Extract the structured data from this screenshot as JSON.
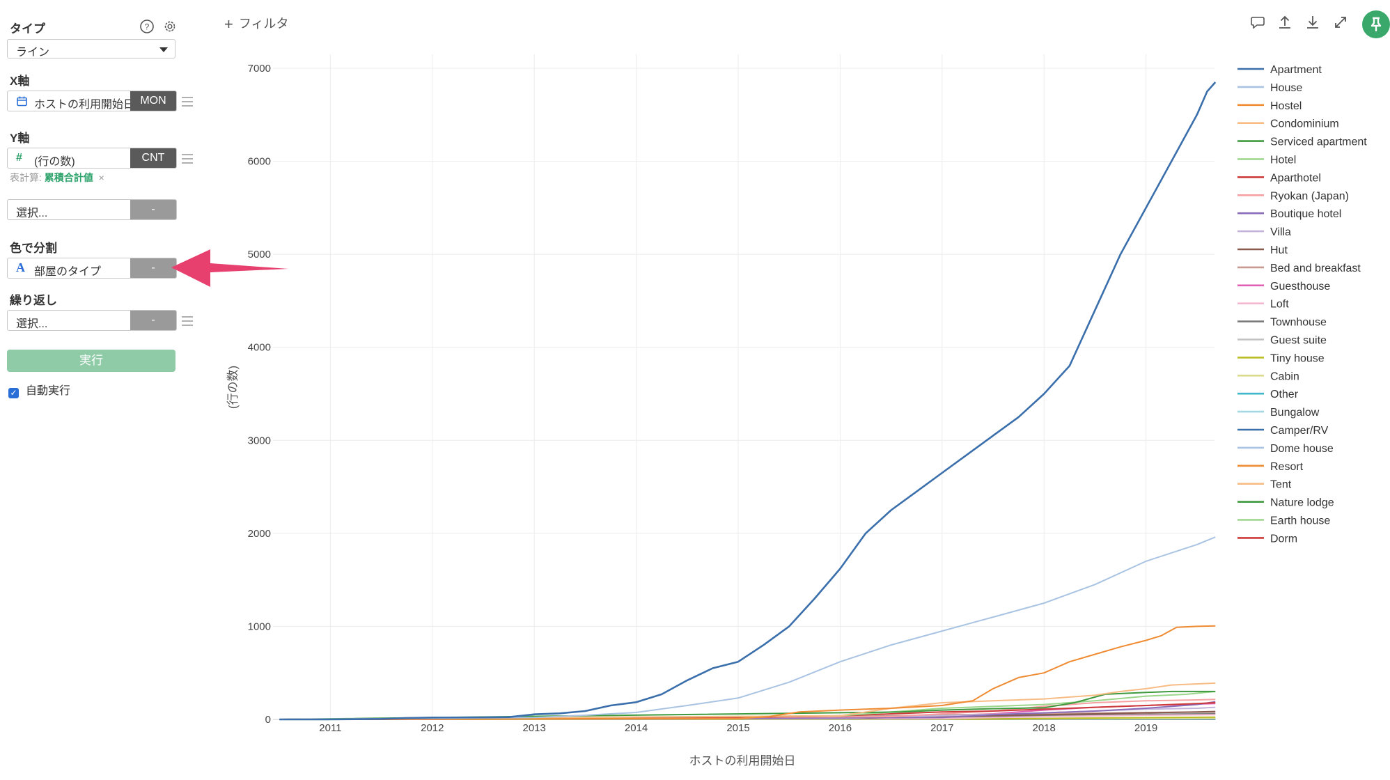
{
  "panel": {
    "type": {
      "label": "タイプ",
      "value": "ライン"
    },
    "x_axis": {
      "label": "X軸",
      "field": "ホストの利用開始日",
      "badge": "MON"
    },
    "y_axis": {
      "label": "Y軸",
      "field": "(行の数)",
      "badge": "CNT",
      "calc_prefix": "表計算:",
      "calc_value": "累積合計値",
      "calc_remove": "×"
    },
    "y_axis2": {
      "placeholder": "選択...",
      "badge": "-"
    },
    "color_split": {
      "label": "色で分割",
      "field": "部屋のタイプ",
      "badge": "-"
    },
    "repeat": {
      "label": "繰り返し",
      "placeholder": "選択...",
      "badge": "-"
    },
    "run_label": "実行",
    "auto_run_label": "自動実行",
    "auto_run_checked": true,
    "icons": {
      "help": "help-icon",
      "settings": "gear-icon",
      "calendar": "calendar-icon",
      "number": "number-icon",
      "text": "text-icon",
      "menu": "menu-icon",
      "caret": "chevron-down-icon"
    }
  },
  "toolbar": {
    "filter_label": "フィルタ",
    "icons": [
      "comment-icon",
      "upload-icon",
      "download-icon",
      "expand-icon",
      "pin-icon"
    ],
    "pin_color": "#3aa86b"
  },
  "annotation": {
    "arrow_color": "#e8406e"
  },
  "chart_data": {
    "type": "line",
    "title": "",
    "xlabel": "ホストの利用開始日",
    "ylabel": "(行の数)",
    "xlim": [
      2010.5,
      2019.75
    ],
    "ylim": [
      0,
      7000
    ],
    "x_ticks": [
      "2011",
      "2012",
      "2013",
      "2014",
      "2015",
      "2016",
      "2017",
      "2018",
      "2019"
    ],
    "y_ticks": [
      "0",
      "1000",
      "2000",
      "3000",
      "4000",
      "5000",
      "6000",
      "7000"
    ],
    "grid": true,
    "legend_position": "right",
    "series": [
      {
        "name": "Apartment",
        "color": "#3a6fac",
        "points": [
          [
            2010.5,
            0
          ],
          [
            2011,
            0
          ],
          [
            2011.5,
            5
          ],
          [
            2011.75,
            15
          ],
          [
            2012,
            20
          ],
          [
            2012.5,
            22
          ],
          [
            2012.75,
            25
          ],
          [
            2013,
            55
          ],
          [
            2013.25,
            65
          ],
          [
            2013.5,
            90
          ],
          [
            2013.75,
            150
          ],
          [
            2014,
            185
          ],
          [
            2014.25,
            270
          ],
          [
            2014.5,
            420
          ],
          [
            2014.75,
            550
          ],
          [
            2015,
            620
          ],
          [
            2015.25,
            800
          ],
          [
            2015.5,
            1000
          ],
          [
            2015.75,
            1300
          ],
          [
            2016,
            1620
          ],
          [
            2016.25,
            2000
          ],
          [
            2016.5,
            2250
          ],
          [
            2016.75,
            2450
          ],
          [
            2017,
            2650
          ],
          [
            2017.25,
            2850
          ],
          [
            2017.5,
            3050
          ],
          [
            2017.75,
            3250
          ],
          [
            2018,
            3500
          ],
          [
            2018.25,
            3800
          ],
          [
            2018.5,
            4400
          ],
          [
            2018.75,
            5000
          ],
          [
            2019,
            5500
          ],
          [
            2019.25,
            6000
          ],
          [
            2019.5,
            6500
          ],
          [
            2019.6,
            6750
          ],
          [
            2019.68,
            6850
          ]
        ]
      },
      {
        "name": "House",
        "color": "#a9c3e2",
        "points": [
          [
            2010.5,
            0
          ],
          [
            2013,
            20
          ],
          [
            2013.5,
            45
          ],
          [
            2014,
            75
          ],
          [
            2014.5,
            150
          ],
          [
            2015,
            230
          ],
          [
            2015.5,
            400
          ],
          [
            2016,
            620
          ],
          [
            2016.5,
            800
          ],
          [
            2017,
            950
          ],
          [
            2017.5,
            1100
          ],
          [
            2018,
            1250
          ],
          [
            2018.5,
            1450
          ],
          [
            2019,
            1700
          ],
          [
            2019.5,
            1880
          ],
          [
            2019.68,
            1960
          ]
        ]
      },
      {
        "name": "Hostel",
        "color": "#ef8b32",
        "points": [
          [
            2010.5,
            0
          ],
          [
            2015,
            10
          ],
          [
            2015.3,
            30
          ],
          [
            2015.6,
            80
          ],
          [
            2016,
            100
          ],
          [
            2016.5,
            120
          ],
          [
            2017,
            150
          ],
          [
            2017.3,
            200
          ],
          [
            2017.5,
            330
          ],
          [
            2017.75,
            450
          ],
          [
            2018,
            500
          ],
          [
            2018.25,
            620
          ],
          [
            2018.5,
            700
          ],
          [
            2018.75,
            780
          ],
          [
            2019,
            850
          ],
          [
            2019.15,
            900
          ],
          [
            2019.3,
            990
          ],
          [
            2019.5,
            1000
          ],
          [
            2019.68,
            1005
          ]
        ]
      },
      {
        "name": "Condominium",
        "color": "#f7bc84",
        "points": [
          [
            2010.5,
            0
          ],
          [
            2016,
            40
          ],
          [
            2016.5,
            120
          ],
          [
            2017,
            180
          ],
          [
            2017.5,
            200
          ],
          [
            2018,
            220
          ],
          [
            2018.5,
            260
          ],
          [
            2018.75,
            300
          ],
          [
            2019,
            330
          ],
          [
            2019.25,
            370
          ],
          [
            2019.68,
            390
          ]
        ]
      },
      {
        "name": "Serviced apartment",
        "color": "#3f9a3f",
        "points": [
          [
            2010.5,
            0
          ],
          [
            2016.6,
            80
          ],
          [
            2017,
            100
          ],
          [
            2017.5,
            115
          ],
          [
            2018,
            125
          ],
          [
            2018.3,
            180
          ],
          [
            2018.6,
            270
          ],
          [
            2019,
            290
          ],
          [
            2019.25,
            300
          ],
          [
            2019.68,
            300
          ]
        ]
      },
      {
        "name": "Hotel",
        "color": "#9bd68a",
        "points": [
          [
            2010.5,
            0
          ],
          [
            2016,
            40
          ],
          [
            2017,
            120
          ],
          [
            2018,
            160
          ],
          [
            2018.5,
            200
          ],
          [
            2019,
            250
          ],
          [
            2019.4,
            270
          ],
          [
            2019.68,
            300
          ]
        ]
      },
      {
        "name": "Aparthotel",
        "color": "#cd3a3a",
        "points": [
          [
            2010.5,
            0
          ],
          [
            2012,
            2
          ],
          [
            2015,
            20
          ],
          [
            2016,
            40
          ],
          [
            2016.5,
            60
          ],
          [
            2017,
            80
          ],
          [
            2017.5,
            90
          ],
          [
            2018,
            110
          ],
          [
            2018.5,
            130
          ],
          [
            2019,
            150
          ],
          [
            2019.5,
            170
          ],
          [
            2019.68,
            180
          ]
        ]
      },
      {
        "name": "Ryokan (Japan)",
        "color": "#f5a1a2",
        "points": [
          [
            2010.5,
            0
          ],
          [
            2016.5,
            30
          ],
          [
            2017.5,
            90
          ],
          [
            2018,
            140
          ],
          [
            2018.5,
            180
          ],
          [
            2019,
            200
          ],
          [
            2019.5,
            210
          ],
          [
            2019.68,
            215
          ]
        ]
      },
      {
        "name": "Boutique hotel",
        "color": "#8a6bb8",
        "points": [
          [
            2010.5,
            0
          ],
          [
            2017,
            20
          ],
          [
            2017.5,
            50
          ],
          [
            2018,
            70
          ],
          [
            2018.5,
            90
          ],
          [
            2019,
            120
          ],
          [
            2019.5,
            160
          ],
          [
            2019.68,
            190
          ]
        ]
      },
      {
        "name": "Villa",
        "color": "#c4b3da",
        "points": [
          [
            2010.5,
            0
          ],
          [
            2016,
            10
          ],
          [
            2017,
            40
          ],
          [
            2018,
            70
          ],
          [
            2018.5,
            90
          ],
          [
            2019,
            110
          ],
          [
            2019.5,
            120
          ],
          [
            2019.68,
            130
          ]
        ]
      },
      {
        "name": "Hut",
        "color": "#8a5a4e",
        "points": [
          [
            2010.5,
            0
          ],
          [
            2016,
            10
          ],
          [
            2017,
            30
          ],
          [
            2018,
            50
          ],
          [
            2018.5,
            60
          ],
          [
            2019,
            70
          ],
          [
            2019.5,
            80
          ],
          [
            2019.68,
            85
          ]
        ]
      },
      {
        "name": "Bed and breakfast",
        "color": "#c69a91",
        "points": [
          [
            2010.5,
            0
          ],
          [
            2015,
            10
          ],
          [
            2016,
            30
          ],
          [
            2017,
            50
          ],
          [
            2018,
            60
          ],
          [
            2019,
            75
          ],
          [
            2019.68,
            80
          ]
        ]
      },
      {
        "name": "Guesthouse",
        "color": "#e05fb3",
        "points": [
          [
            2010.5,
            0
          ],
          [
            2016.5,
            20
          ],
          [
            2017.5,
            60
          ],
          [
            2018,
            100
          ],
          [
            2018.5,
            130
          ],
          [
            2019,
            150
          ],
          [
            2019.5,
            165
          ],
          [
            2019.68,
            170
          ]
        ]
      },
      {
        "name": "Loft",
        "color": "#f4b7d0",
        "points": [
          [
            2010.5,
            0
          ],
          [
            2017,
            10
          ],
          [
            2018,
            30
          ],
          [
            2019,
            45
          ],
          [
            2019.68,
            50
          ]
        ]
      },
      {
        "name": "Townhouse",
        "color": "#7a7a7a",
        "points": [
          [
            2010.5,
            0
          ],
          [
            2016,
            10
          ],
          [
            2017,
            25
          ],
          [
            2018,
            40
          ],
          [
            2019,
            55
          ],
          [
            2019.68,
            60
          ]
        ]
      },
      {
        "name": "Guest suite",
        "color": "#c2c2c2",
        "points": [
          [
            2010.5,
            0
          ],
          [
            2017,
            15
          ],
          [
            2018,
            35
          ],
          [
            2019,
            55
          ],
          [
            2019.68,
            65
          ]
        ]
      },
      {
        "name": "Tiny house",
        "color": "#bcbd22",
        "points": [
          [
            2010.5,
            0
          ],
          [
            2017.5,
            5
          ],
          [
            2018.5,
            15
          ],
          [
            2019.68,
            25
          ]
        ]
      },
      {
        "name": "Cabin",
        "color": "#dbdb8d",
        "points": [
          [
            2010.5,
            0
          ],
          [
            2017.5,
            3
          ],
          [
            2018.5,
            8
          ],
          [
            2019.68,
            12
          ]
        ]
      },
      {
        "name": "Other",
        "color": "#3fb6cc",
        "points": [
          [
            2010.5,
            0
          ],
          [
            2016,
            3
          ],
          [
            2018,
            8
          ],
          [
            2019.68,
            12
          ]
        ]
      },
      {
        "name": "Bungalow",
        "color": "#a3d9e5",
        "points": [
          [
            2010.5,
            0
          ],
          [
            2017,
            3
          ],
          [
            2019.68,
            8
          ]
        ]
      },
      {
        "name": "Camper/RV",
        "color": "#3a6fac",
        "points": [
          [
            2010.5,
            0
          ],
          [
            2018,
            2
          ],
          [
            2019.68,
            4
          ]
        ]
      },
      {
        "name": "Dome house",
        "color": "#a9c3e2",
        "points": [
          [
            2010.5,
            0
          ],
          [
            2018,
            2
          ],
          [
            2019.68,
            3
          ]
        ]
      },
      {
        "name": "Resort",
        "color": "#ef8b32",
        "points": [
          [
            2010.5,
            0
          ],
          [
            2018,
            3
          ],
          [
            2019.68,
            6
          ]
        ]
      },
      {
        "name": "Tent",
        "color": "#f7bc84",
        "points": [
          [
            2010.5,
            0
          ],
          [
            2018.5,
            2
          ],
          [
            2019.68,
            4
          ]
        ]
      },
      {
        "name": "Nature lodge",
        "color": "#3f9a3f",
        "points": [
          [
            2010.5,
            0
          ],
          [
            2018.5,
            2
          ],
          [
            2019.68,
            3
          ]
        ]
      },
      {
        "name": "Earth house",
        "color": "#9bd68a",
        "points": [
          [
            2010.5,
            0
          ],
          [
            2019,
            1
          ],
          [
            2019.68,
            2
          ]
        ]
      },
      {
        "name": "Dorm",
        "color": "#cd3a3a",
        "points": [
          [
            2010.5,
            0
          ],
          [
            2019,
            1
          ],
          [
            2019.68,
            2
          ]
        ]
      }
    ]
  }
}
